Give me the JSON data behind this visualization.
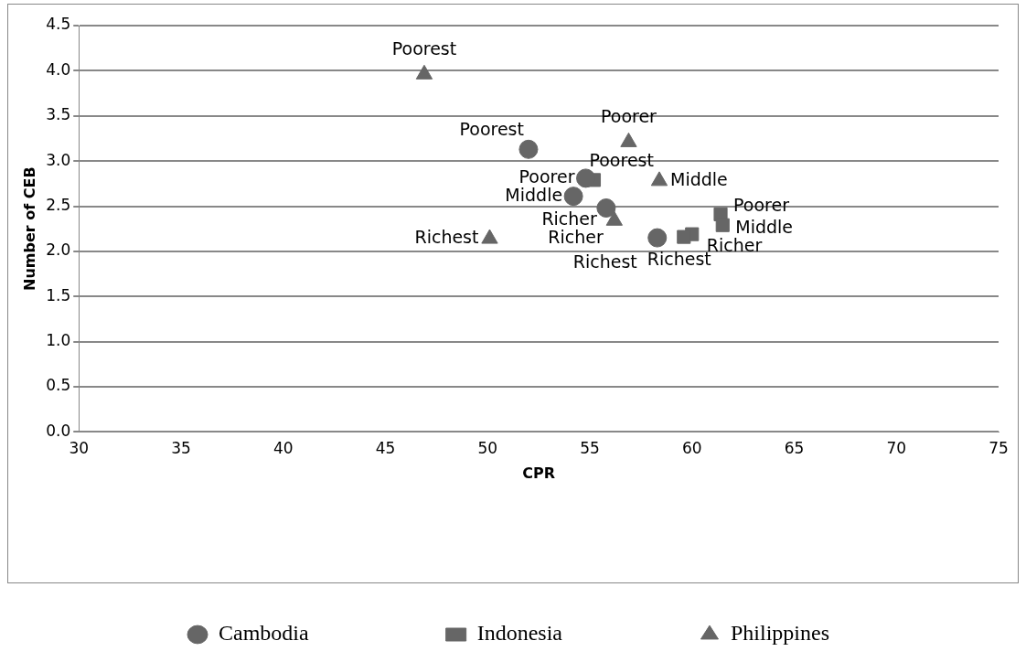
{
  "chart_data": {
    "type": "scatter",
    "xlabel": "CPR",
    "ylabel": "Number of CEB",
    "xlim": [
      30,
      75
    ],
    "xticks": [
      30,
      35,
      40,
      45,
      50,
      55,
      60,
      65,
      70,
      75
    ],
    "ylim": [
      0,
      4.5
    ],
    "yticks": [
      {
        "value": 0,
        "label": "0.0"
      },
      {
        "value": 0.5,
        "label": "0.5"
      },
      {
        "value": 1,
        "label": "1.0"
      },
      {
        "value": 1.5,
        "label": "1.5"
      },
      {
        "value": 2,
        "label": "2.0"
      },
      {
        "value": 2.5,
        "label": "2.5"
      },
      {
        "value": 3,
        "label": "3.0"
      },
      {
        "value": 3.5,
        "label": "3.5"
      },
      {
        "value": 4,
        "label": "4.0"
      },
      {
        "value": 4.5,
        "label": "4.5"
      }
    ],
    "grid": "y",
    "legend": "bottom",
    "series": [
      {
        "name": "Cambodia",
        "color": "#666666",
        "marker": "circle",
        "x": [
          52.0,
          54.8,
          54.2,
          55.8,
          58.3
        ],
        "values": [
          3.13,
          2.81,
          2.61,
          2.48,
          2.15
        ],
        "value_labels": [
          "Poorest",
          "Poorer",
          "Middle",
          "Richer",
          "Richest"
        ]
      },
      {
        "name": "Indonesia",
        "color": "#666666",
        "marker": "square",
        "x": [
          55.2,
          61.4,
          61.5,
          60.0,
          59.6
        ],
        "values": [
          2.79,
          2.41,
          2.29,
          2.19,
          2.16
        ],
        "value_labels": [
          "Poorest",
          "Poorer",
          "Middle",
          "Richer",
          "Richest"
        ]
      },
      {
        "name": "Philippines",
        "color": "#666666",
        "marker": "triangle",
        "x": [
          46.9,
          56.9,
          58.4,
          56.2,
          50.1
        ],
        "values": [
          3.96,
          3.21,
          2.78,
          2.34,
          2.14
        ],
        "value_labels": [
          "Poorest",
          "Poorer",
          "Middle",
          "Richer",
          "Richest"
        ]
      }
    ]
  }
}
